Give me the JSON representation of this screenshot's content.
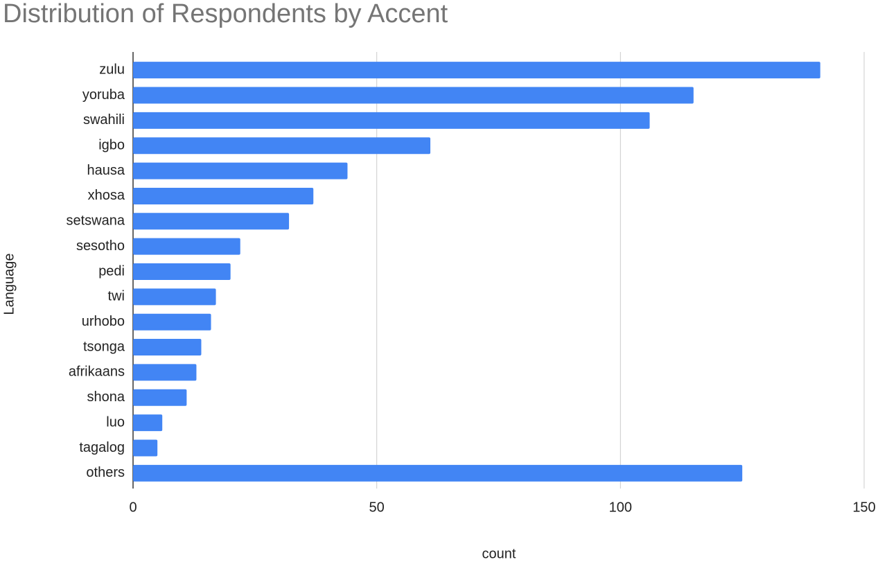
{
  "chart_data": {
    "type": "bar",
    "orientation": "horizontal",
    "title": "Distribution of Respondents by Accent",
    "x_label": "count",
    "y_label": "Language",
    "categories": [
      "zulu",
      "yoruba",
      "swahili",
      "igbo",
      "hausa",
      "xhosa",
      "setswana",
      "sesotho",
      "pedi",
      "twi",
      "urhobo",
      "tsonga",
      "afrikaans",
      "shona",
      "luo",
      "tagalog",
      "others"
    ],
    "values": [
      141,
      115,
      106,
      61,
      44,
      37,
      32,
      22,
      20,
      17,
      16,
      14,
      13,
      11,
      6,
      5,
      125
    ],
    "color": "#4285f4",
    "xlim": [
      0,
      150
    ],
    "xticks": [
      0,
      50,
      100,
      150
    ],
    "grid": true
  }
}
